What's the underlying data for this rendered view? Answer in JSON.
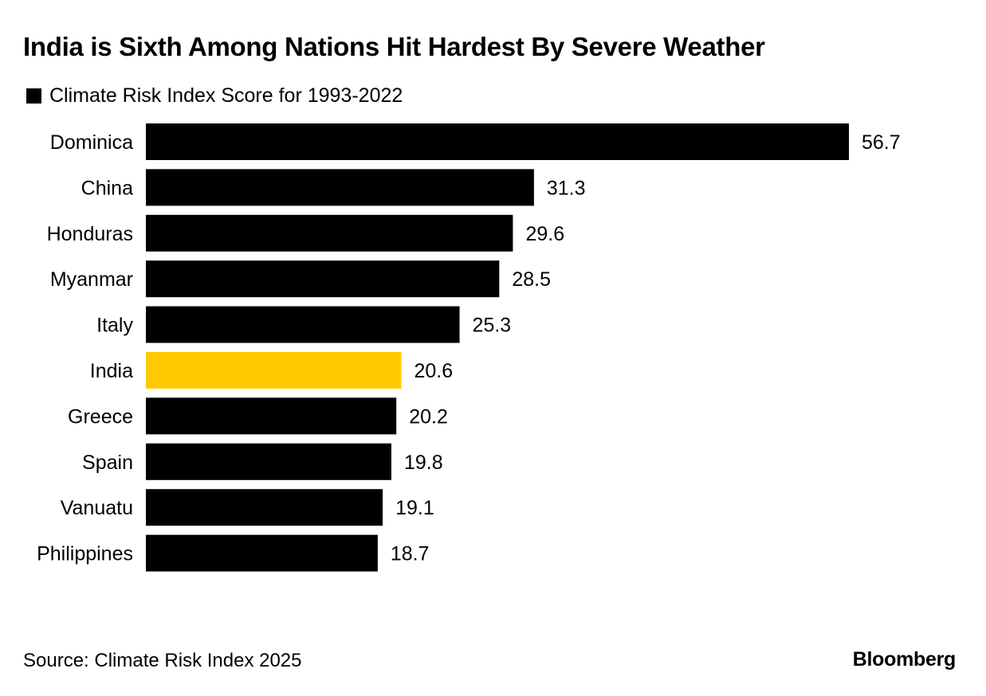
{
  "title": "India is Sixth Among Nations Hit Hardest By Severe Weather",
  "legend": {
    "label": "Climate Risk Index Score for 1993-2022",
    "color": "#000000"
  },
  "source": "Source: Climate Risk Index 2025",
  "brand": "Bloomberg",
  "colors": {
    "default_bar": "#000000",
    "highlight_bar": "#FFC800"
  },
  "chart_data": {
    "type": "bar",
    "orientation": "horizontal",
    "categories": [
      "Dominica",
      "China",
      "Honduras",
      "Myanmar",
      "Italy",
      "India",
      "Greece",
      "Spain",
      "Vanuatu",
      "Philippines"
    ],
    "series": [
      {
        "name": "Climate Risk Index Score for 1993-2022",
        "values": [
          56.7,
          31.3,
          29.6,
          28.5,
          25.3,
          20.6,
          20.2,
          19.8,
          19.1,
          18.7
        ]
      }
    ],
    "value_labels": [
      "56.7",
      "31.3",
      "29.6",
      "28.5",
      "25.3",
      "20.6",
      "20.2",
      "19.8",
      "19.1",
      "18.7"
    ],
    "highlight_category": "India",
    "xlim": [
      0,
      56.7
    ],
    "grid": false,
    "legend_position": "top-left"
  }
}
